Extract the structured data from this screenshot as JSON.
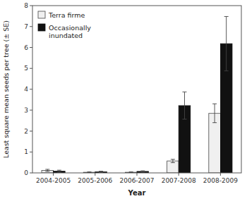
{
  "chart_data": {
    "type": "bar",
    "xlabel": "Year",
    "ylabel": "Least square mean seeds per tree (± SE)",
    "categories": [
      "2004-2005",
      "2005-2006",
      "2006-2007",
      "2007-2008",
      "2008-2009"
    ],
    "series": [
      {
        "name": "Terra firme",
        "color": "#f0f0f0",
        "values": [
          0.12,
          0.03,
          0.03,
          0.57,
          2.85
        ],
        "errors": [
          0.05,
          0.02,
          0.02,
          0.08,
          0.45
        ]
      },
      {
        "name": "Occasionally\ninundated",
        "color": "#111111",
        "values": [
          0.08,
          0.05,
          0.07,
          3.22,
          6.18
        ],
        "errors": [
          0.05,
          0.03,
          0.03,
          0.65,
          1.3
        ]
      }
    ],
    "ylim": [
      0,
      8
    ],
    "yticks": [
      0,
      1,
      2,
      3,
      4,
      5,
      6,
      7,
      8
    ],
    "legend": "upper left"
  }
}
